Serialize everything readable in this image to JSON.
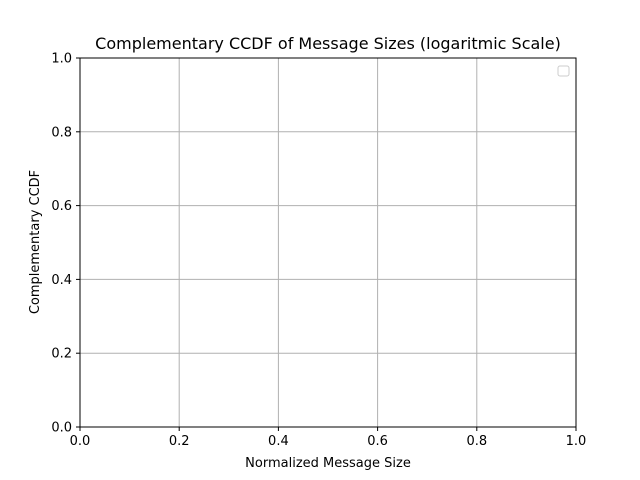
{
  "chart_data": {
    "type": "line",
    "title": "Complementary CCDF of Message Sizes (logaritmic Scale)",
    "xlabel": "Normalized Message Size",
    "ylabel": "Complementary CCDF",
    "xlim": [
      0.0,
      1.0
    ],
    "ylim": [
      0.0,
      1.0
    ],
    "x_ticks": [
      "0.0",
      "0.2",
      "0.4",
      "0.6",
      "0.8",
      "1.0"
    ],
    "y_ticks": [
      "0.0",
      "0.2",
      "0.4",
      "0.6",
      "0.8",
      "1.0"
    ],
    "grid": true,
    "legend": "top-right",
    "legend_entries": [],
    "series": [],
    "colors": {
      "grid": "#b0b0b0",
      "axes": "#000000",
      "background": "#ffffff"
    }
  }
}
